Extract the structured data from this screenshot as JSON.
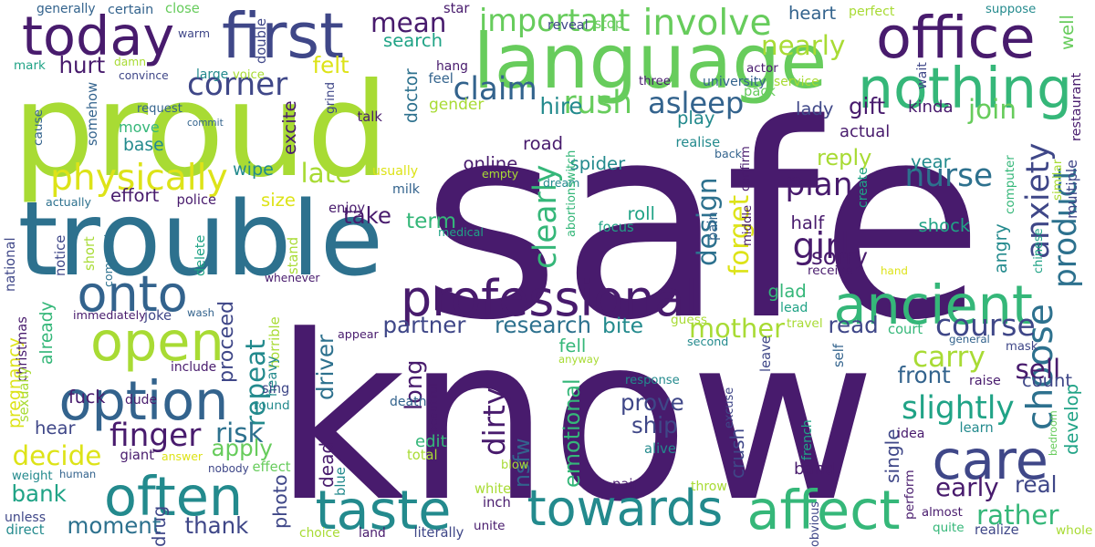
{
  "palette": {
    "dark_purple": "#481b6d",
    "indigo": "#3f4788",
    "blue": "#33638d",
    "teal_blue": "#2d718e",
    "teal": "#238a8d",
    "sea_green": "#20a386",
    "green": "#35b779",
    "light_green": "#67cc5c",
    "lime": "#a8db34",
    "yellow": "#dde318"
  },
  "words": [
    {
      "text": "safe",
      "color": "#481b6d"
    },
    {
      "text": "know",
      "color": "#481b6d"
    },
    {
      "text": "proud",
      "color": "#a8db34"
    },
    {
      "text": "trouble",
      "color": "#2d718e"
    },
    {
      "text": "today",
      "color": "#481b6d"
    },
    {
      "text": "first",
      "color": "#3f4788"
    },
    {
      "text": "language",
      "color": "#67cc5c"
    },
    {
      "text": "office",
      "color": "#481b6d"
    },
    {
      "text": "nothing",
      "color": "#35b779"
    },
    {
      "text": "professional",
      "color": "#481b6d"
    },
    {
      "text": "ancient",
      "color": "#35b779"
    },
    {
      "text": "open",
      "color": "#a8db34"
    },
    {
      "text": "option",
      "color": "#33638d"
    },
    {
      "text": "onto",
      "color": "#33638d"
    },
    {
      "text": "often",
      "color": "#238a8d"
    },
    {
      "text": "taste",
      "color": "#238a8d"
    },
    {
      "text": "towards",
      "color": "#238a8d"
    },
    {
      "text": "affect",
      "color": "#35b779"
    },
    {
      "text": "care",
      "color": "#3f4788"
    },
    {
      "text": "choose",
      "color": "#2d718e"
    },
    {
      "text": "product",
      "color": "#2d718e"
    },
    {
      "text": "anxiety",
      "color": "#3f4788"
    },
    {
      "text": "physically",
      "color": "#dde318"
    },
    {
      "text": "claim",
      "color": "#33638d"
    },
    {
      "text": "rush",
      "color": "#67cc5c"
    },
    {
      "text": "corner",
      "color": "#3f4788"
    },
    {
      "text": "important",
      "color": "#67cc5c"
    },
    {
      "text": "involve",
      "color": "#67cc5c"
    },
    {
      "text": "mean",
      "color": "#481b6d"
    },
    {
      "text": "search",
      "color": "#20a386"
    },
    {
      "text": "nearly",
      "color": "#a8db34"
    },
    {
      "text": "hurt",
      "color": "#481b6d"
    },
    {
      "text": "felt",
      "color": "#dde318"
    },
    {
      "text": "asleep",
      "color": "#33638d"
    },
    {
      "text": "hire",
      "color": "#238a8d"
    },
    {
      "text": "gift",
      "color": "#481b6d"
    },
    {
      "text": "plan",
      "color": "#481b6d"
    },
    {
      "text": "nurse",
      "color": "#2d718e"
    },
    {
      "text": "girl",
      "color": "#481b6d"
    },
    {
      "text": "design",
      "color": "#2d718e"
    },
    {
      "text": "forget",
      "color": "#dde318"
    },
    {
      "text": "clearly",
      "color": "#35b779"
    },
    {
      "text": "late",
      "color": "#a8db34"
    },
    {
      "text": "take",
      "color": "#481b6d"
    },
    {
      "text": "term",
      "color": "#35b779"
    },
    {
      "text": "well",
      "color": "#67cc5c"
    },
    {
      "text": "join",
      "color": "#67cc5c"
    },
    {
      "text": "reply",
      "color": "#a8db34"
    },
    {
      "text": "course",
      "color": "#3f4788"
    },
    {
      "text": "slightly",
      "color": "#20a386"
    },
    {
      "text": "carry",
      "color": "#a8db34"
    },
    {
      "text": "sell",
      "color": "#481b6d"
    },
    {
      "text": "front",
      "color": "#33638d"
    },
    {
      "text": "count",
      "color": "#3f4788"
    },
    {
      "text": "develop",
      "color": "#20a386"
    },
    {
      "text": "rather",
      "color": "#35b779"
    },
    {
      "text": "early",
      "color": "#481b6d"
    },
    {
      "text": "real",
      "color": "#3f4788"
    },
    {
      "text": "mother",
      "color": "#a8db34"
    },
    {
      "text": "read",
      "color": "#3f4788"
    },
    {
      "text": "research",
      "color": "#2d718e"
    },
    {
      "text": "partner",
      "color": "#3f4788"
    },
    {
      "text": "bite",
      "color": "#238a8d"
    },
    {
      "text": "repeat",
      "color": "#238a8d"
    },
    {
      "text": "proceed",
      "color": "#3f4788"
    },
    {
      "text": "risk",
      "color": "#2d718e"
    },
    {
      "text": "finger",
      "color": "#481b6d"
    },
    {
      "text": "apply",
      "color": "#67cc5c"
    },
    {
      "text": "decide",
      "color": "#dde318"
    },
    {
      "text": "pregnancy",
      "color": "#dde318"
    },
    {
      "text": "bank",
      "color": "#20a386"
    },
    {
      "text": "moment",
      "color": "#2d718e"
    },
    {
      "text": "thank",
      "color": "#3f4788"
    },
    {
      "text": "long",
      "color": "#481b6d"
    },
    {
      "text": "dirty",
      "color": "#481b6d"
    },
    {
      "text": "prove",
      "color": "#3f4788"
    },
    {
      "text": "ship",
      "color": "#3f4788"
    },
    {
      "text": "driver",
      "color": "#2d718e"
    },
    {
      "text": "nsfw",
      "color": "#33638d"
    },
    {
      "text": "emotional",
      "color": "#35b779"
    },
    {
      "text": "sorry",
      "color": "#481b6d"
    },
    {
      "text": "half",
      "color": "#481b6d"
    },
    {
      "text": "shock",
      "color": "#20a386"
    },
    {
      "text": "angry",
      "color": "#238a8d"
    },
    {
      "text": "year",
      "color": "#238a8d"
    },
    {
      "text": "lady",
      "color": "#3f4788"
    },
    {
      "text": "kinda",
      "color": "#481b6d"
    },
    {
      "text": "heart",
      "color": "#33638d"
    },
    {
      "text": "online",
      "color": "#481b6d"
    },
    {
      "text": "spider",
      "color": "#238a8d"
    },
    {
      "text": "road",
      "color": "#481b6d"
    },
    {
      "text": "size",
      "color": "#dde318"
    },
    {
      "text": "wipe",
      "color": "#238a8d"
    },
    {
      "text": "effort",
      "color": "#481b6d"
    },
    {
      "text": "base",
      "color": "#238a8d"
    },
    {
      "text": "move",
      "color": "#35b779"
    },
    {
      "text": "somehow",
      "color": "#33638d"
    },
    {
      "text": "excite",
      "color": "#481b6d"
    },
    {
      "text": "doctor",
      "color": "#2d718e"
    },
    {
      "text": "gender",
      "color": "#a8db34"
    },
    {
      "text": "play",
      "color": "#238a8d"
    },
    {
      "text": "actual",
      "color": "#481b6d"
    },
    {
      "text": "glad",
      "color": "#35b779"
    },
    {
      "text": "roll",
      "color": "#20a386"
    },
    {
      "text": "already",
      "color": "#35b779"
    },
    {
      "text": "edit",
      "color": "#35b779"
    },
    {
      "text": "fell",
      "color": "#35b779"
    },
    {
      "text": "crush",
      "color": "#3f4788"
    },
    {
      "text": "single",
      "color": "#3f4788"
    },
    {
      "text": "photo",
      "color": "#3f4788"
    },
    {
      "text": "dead",
      "color": "#481b6d"
    },
    {
      "text": "drug",
      "color": "#3f4788"
    },
    {
      "text": "band",
      "color": "#481b6d"
    },
    {
      "text": "hear",
      "color": "#3f4788"
    },
    {
      "text": "fuck",
      "color": "#481b6d"
    },
    {
      "text": "generally",
      "color": "#33638d"
    },
    {
      "text": "certain",
      "color": "#33638d"
    },
    {
      "text": "close",
      "color": "#67cc5c"
    },
    {
      "text": "star",
      "color": "#481b6d"
    },
    {
      "text": "suppose",
      "color": "#238a8d"
    },
    {
      "text": "perfect",
      "color": "#a8db34"
    },
    {
      "text": "warm",
      "color": "#3f4788"
    },
    {
      "text": "double",
      "color": "#3f4788"
    },
    {
      "text": "reveal",
      "color": "#3f4788"
    },
    {
      "text": "stop",
      "color": "#67cc5c"
    },
    {
      "text": "mark",
      "color": "#20a386"
    },
    {
      "text": "damn",
      "color": "#a8db34"
    },
    {
      "text": "convince",
      "color": "#3f4788"
    },
    {
      "text": "large",
      "color": "#238a8d"
    },
    {
      "text": "voice",
      "color": "#a8db34"
    },
    {
      "text": "hang",
      "color": "#481b6d"
    },
    {
      "text": "feel",
      "color": "#33638d"
    },
    {
      "text": "three",
      "color": "#481b6d"
    },
    {
      "text": "actor",
      "color": "#481b6d"
    },
    {
      "text": "university",
      "color": "#33638d"
    },
    {
      "text": "service",
      "color": "#a8db34"
    },
    {
      "text": "pack",
      "color": "#67cc5c"
    },
    {
      "text": "wait",
      "color": "#3f4788"
    },
    {
      "text": "restaurant",
      "color": "#481b6d"
    },
    {
      "text": "request",
      "color": "#33638d"
    },
    {
      "text": "commit",
      "color": "#33638d"
    },
    {
      "text": "grind",
      "color": "#3f4788"
    },
    {
      "text": "talk",
      "color": "#481b6d"
    },
    {
      "text": "cause",
      "color": "#33638d"
    },
    {
      "text": "realise",
      "color": "#238a8d"
    },
    {
      "text": "back",
      "color": "#33638d"
    },
    {
      "text": "confirm",
      "color": "#481b6d"
    },
    {
      "text": "computer",
      "color": "#35b779"
    },
    {
      "text": "similar",
      "color": "#a8db34"
    },
    {
      "text": "multiple",
      "color": "#3f4788"
    },
    {
      "text": "usually",
      "color": "#dde318"
    },
    {
      "text": "empty",
      "color": "#a8db34"
    },
    {
      "text": "dream",
      "color": "#238a8d"
    },
    {
      "text": "abortionswitch",
      "color": "#35b779"
    },
    {
      "text": "create",
      "color": "#20a386"
    },
    {
      "text": "milk",
      "color": "#33638d"
    },
    {
      "text": "police",
      "color": "#481b6d"
    },
    {
      "text": "actually",
      "color": "#2d718e"
    },
    {
      "text": "enjoy",
      "color": "#481b6d"
    },
    {
      "text": "medical",
      "color": "#20a386"
    },
    {
      "text": "focus",
      "color": "#20a386"
    },
    {
      "text": "pain",
      "color": "#33638d"
    },
    {
      "text": "middle",
      "color": "#481b6d"
    },
    {
      "text": "chinese",
      "color": "#20a386"
    },
    {
      "text": "national",
      "color": "#3f4788"
    },
    {
      "text": "notice",
      "color": "#3f4788"
    },
    {
      "text": "short",
      "color": "#a8db34"
    },
    {
      "text": "comment",
      "color": "#2d718e"
    },
    {
      "text": "delete",
      "color": "#20a386"
    },
    {
      "text": "stand",
      "color": "#a8db34"
    },
    {
      "text": "whenever",
      "color": "#481b6d"
    },
    {
      "text": "receive",
      "color": "#481b6d"
    },
    {
      "text": "hand",
      "color": "#dde318"
    },
    {
      "text": "immediately",
      "color": "#481b6d"
    },
    {
      "text": "joke",
      "color": "#3f4788"
    },
    {
      "text": "wash",
      "color": "#33638d"
    },
    {
      "text": "lead",
      "color": "#20a386"
    },
    {
      "text": "travel",
      "color": "#a8db34"
    },
    {
      "text": "christmas",
      "color": "#481b6d"
    },
    {
      "text": "appear",
      "color": "#481b6d"
    },
    {
      "text": "horrible",
      "color": "#a8db34"
    },
    {
      "text": "guess",
      "color": "#a8db34"
    },
    {
      "text": "court",
      "color": "#35b779"
    },
    {
      "text": "general",
      "color": "#33638d"
    },
    {
      "text": "mask",
      "color": "#3f4788"
    },
    {
      "text": "second",
      "color": "#238a8d"
    },
    {
      "text": "sexually",
      "color": "#a8db34"
    },
    {
      "text": "include",
      "color": "#481b6d"
    },
    {
      "text": "heavy",
      "color": "#238a8d"
    },
    {
      "text": "anyway",
      "color": "#a8db34"
    },
    {
      "text": "leave",
      "color": "#3f4788"
    },
    {
      "text": "self",
      "color": "#33638d"
    },
    {
      "text": "raise",
      "color": "#481b6d"
    },
    {
      "text": "sing",
      "color": "#3f4788"
    },
    {
      "text": "dude",
      "color": "#481b6d"
    },
    {
      "text": "round",
      "color": "#238a8d"
    },
    {
      "text": "response",
      "color": "#238a8d"
    },
    {
      "text": "bedroom",
      "color": "#67cc5c"
    },
    {
      "text": "excuse",
      "color": "#3f4788"
    },
    {
      "text": "giant",
      "color": "#481b6d"
    },
    {
      "text": "answer",
      "color": "#dde318"
    },
    {
      "text": "death",
      "color": "#33638d"
    },
    {
      "text": "beautiful",
      "color": "#481b6d"
    },
    {
      "text": "idea",
      "color": "#481b6d"
    },
    {
      "text": "learn",
      "color": "#238a8d"
    },
    {
      "text": "weight",
      "color": "#238a8d"
    },
    {
      "text": "human",
      "color": "#33638d"
    },
    {
      "text": "nobody",
      "color": "#3f4788"
    },
    {
      "text": "effect",
      "color": "#67cc5c"
    },
    {
      "text": "blue",
      "color": "#238a8d"
    },
    {
      "text": "total",
      "color": "#a8db34"
    },
    {
      "text": "blow",
      "color": "#a8db34"
    },
    {
      "text": "alive",
      "color": "#238a8d"
    },
    {
      "text": "french",
      "color": "#20a386"
    },
    {
      "text": "perform",
      "color": "#481b6d"
    },
    {
      "text": "pair",
      "color": "#481b6d"
    },
    {
      "text": "throw",
      "color": "#a8db34"
    },
    {
      "text": "white",
      "color": "#a8db34"
    },
    {
      "text": "unless",
      "color": "#3f4788"
    },
    {
      "text": "direct",
      "color": "#238a8d"
    },
    {
      "text": "inch",
      "color": "#481b6d"
    },
    {
      "text": "unite",
      "color": "#481b6d"
    },
    {
      "text": "obvious",
      "color": "#3f4788"
    },
    {
      "text": "almost",
      "color": "#481b6d"
    },
    {
      "text": "quite",
      "color": "#35b779"
    },
    {
      "text": "choice",
      "color": "#a8db34"
    },
    {
      "text": "land",
      "color": "#481b6d"
    },
    {
      "text": "literally",
      "color": "#3f4788"
    },
    {
      "text": "realize",
      "color": "#3f4788"
    },
    {
      "text": "whole",
      "color": "#a8db34"
    }
  ]
}
